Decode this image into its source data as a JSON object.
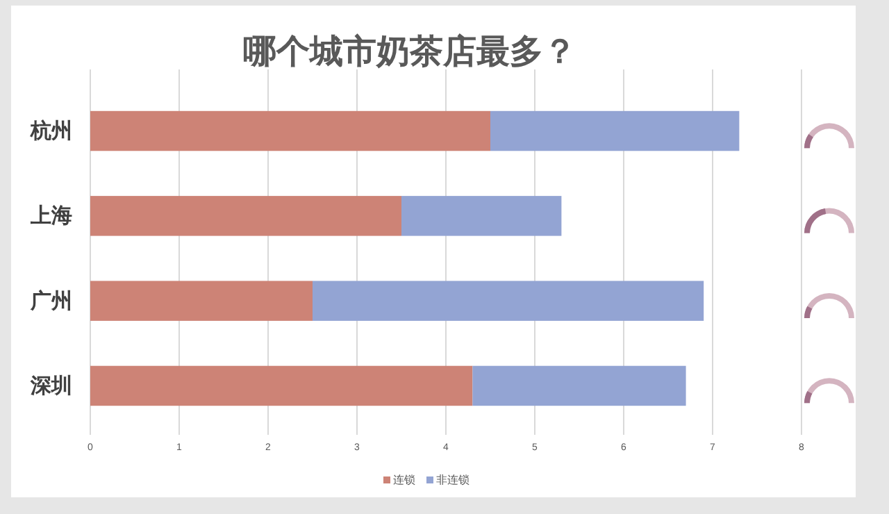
{
  "chart_data": {
    "type": "bar",
    "orientation": "horizontal",
    "stacked": true,
    "title": "哪个城市奶茶店最多？",
    "categories": [
      "杭州",
      "上海",
      "广州",
      "深圳"
    ],
    "series": [
      {
        "name": "连锁",
        "color": "#cd8376",
        "values": [
          4.5,
          3.5,
          2.5,
          4.3
        ]
      },
      {
        "name": "非连锁",
        "color": "#93a4d3",
        "values": [
          2.8,
          1.8,
          4.4,
          2.4
        ]
      }
    ],
    "xlim": [
      0,
      8
    ],
    "xticks": [
      0,
      1,
      2,
      3,
      4,
      5,
      6,
      7,
      8
    ],
    "grid": "x",
    "legend": "bottom"
  }
}
